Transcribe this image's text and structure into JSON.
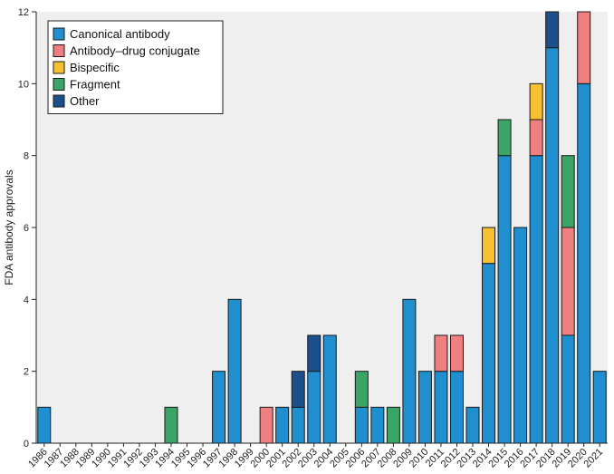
{
  "chart_data": {
    "type": "bar",
    "stacked": true,
    "title": "",
    "xlabel": "",
    "ylabel": "FDA antibody approvals",
    "ylim": [
      0,
      12
    ],
    "yticks": [
      0,
      2,
      4,
      6,
      8,
      10,
      12
    ],
    "grid": false,
    "legend_position": "top-left",
    "categories": [
      "1986",
      "1987",
      "1988",
      "1989",
      "1990",
      "1991",
      "1992",
      "1993",
      "1994",
      "1995",
      "1996",
      "1997",
      "1998",
      "1999",
      "2000",
      "2001",
      "2002",
      "2003",
      "2004",
      "2005",
      "2006",
      "2007",
      "2008",
      "2009",
      "2010",
      "2011",
      "2012",
      "2013",
      "2014",
      "2015",
      "2016",
      "2017",
      "2018",
      "2019",
      "2020",
      "2021"
    ],
    "series": [
      {
        "name": "Canonical antibody",
        "color": "#1f8fd0",
        "values": [
          1,
          0,
          0,
          0,
          0,
          0,
          0,
          0,
          0,
          0,
          0,
          2,
          4,
          0,
          0,
          1,
          1,
          2,
          3,
          0,
          1,
          1,
          0,
          4,
          2,
          2,
          2,
          1,
          5,
          8,
          6,
          8,
          11,
          3,
          10,
          2
        ]
      },
      {
        "name": "Antibody–drug conjugate",
        "color": "#f08080",
        "values": [
          0,
          0,
          0,
          0,
          0,
          0,
          0,
          0,
          0,
          0,
          0,
          0,
          0,
          0,
          1,
          0,
          0,
          0,
          0,
          0,
          0,
          0,
          0,
          0,
          0,
          1,
          1,
          0,
          0,
          0,
          0,
          1,
          0,
          3,
          2,
          0
        ]
      },
      {
        "name": "Bispecific",
        "color": "#f7c02e",
        "values": [
          0,
          0,
          0,
          0,
          0,
          0,
          0,
          0,
          0,
          0,
          0,
          0,
          0,
          0,
          0,
          0,
          0,
          0,
          0,
          0,
          0,
          0,
          0,
          0,
          0,
          0,
          0,
          0,
          1,
          0,
          0,
          1,
          0,
          0,
          0,
          0
        ]
      },
      {
        "name": "Fragment",
        "color": "#3aa564",
        "values": [
          0,
          0,
          0,
          0,
          0,
          0,
          0,
          0,
          1,
          0,
          0,
          0,
          0,
          0,
          0,
          0,
          0,
          0,
          0,
          0,
          1,
          0,
          1,
          0,
          0,
          0,
          0,
          0,
          0,
          1,
          0,
          0,
          0,
          2,
          0,
          0
        ]
      },
      {
        "name": "Other",
        "color": "#1c4f8c",
        "values": [
          0,
          0,
          0,
          0,
          0,
          0,
          0,
          0,
          0,
          0,
          0,
          0,
          0,
          0,
          0,
          0,
          1,
          1,
          0,
          0,
          0,
          0,
          0,
          0,
          0,
          0,
          0,
          0,
          0,
          0,
          0,
          0,
          1,
          0,
          0,
          0
        ]
      }
    ]
  }
}
